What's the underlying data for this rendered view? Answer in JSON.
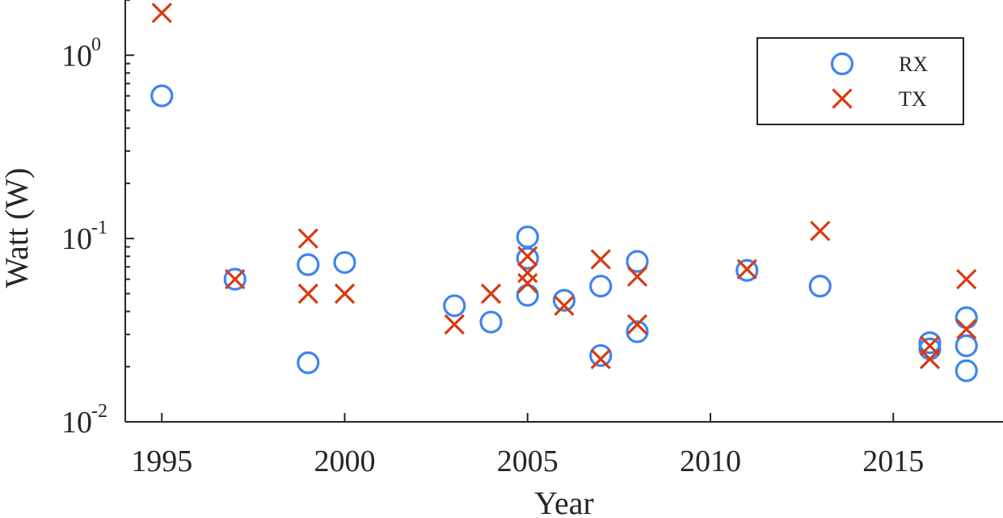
{
  "chart_data": {
    "type": "scatter",
    "title": "",
    "xlabel": "Year",
    "ylabel": "Watt (W)",
    "xlim": [
      1994,
      2018
    ],
    "ylim": [
      0.01,
      2
    ],
    "yscale": "log",
    "xticks": [
      1995,
      2000,
      2005,
      2010,
      2015
    ],
    "xtick_labels": [
      "1995",
      "2000",
      "2005",
      "2010",
      "2015"
    ],
    "yticks": [
      {
        "value": 1,
        "base": "10",
        "exp": "0"
      },
      {
        "value": 0.1,
        "base": "10",
        "exp": "-1"
      },
      {
        "value": 0.01,
        "base": "10",
        "exp": "-2"
      }
    ],
    "grid": false,
    "legend_position": "top-right",
    "series": [
      {
        "name": "RX",
        "marker": "circle",
        "color": "#3d85f0",
        "points": [
          [
            1995,
            0.6
          ],
          [
            1997,
            0.06
          ],
          [
            1999,
            0.072
          ],
          [
            1999,
            0.021
          ],
          [
            2000,
            0.074
          ],
          [
            2003,
            0.043
          ],
          [
            2004,
            0.035
          ],
          [
            2005,
            0.102
          ],
          [
            2005,
            0.078
          ],
          [
            2005,
            0.049
          ],
          [
            2006,
            0.046
          ],
          [
            2007,
            0.055
          ],
          [
            2007,
            0.023
          ],
          [
            2008,
            0.075
          ],
          [
            2008,
            0.031
          ],
          [
            2011,
            0.067
          ],
          [
            2013,
            0.055
          ],
          [
            2016,
            0.027
          ],
          [
            2016,
            0.025
          ],
          [
            2017,
            0.037
          ],
          [
            2017,
            0.026
          ],
          [
            2017,
            0.019
          ]
        ]
      },
      {
        "name": "TX",
        "marker": "x",
        "color": "#d93a12",
        "points": [
          [
            1995,
            1.7
          ],
          [
            1997,
            0.06
          ],
          [
            1999,
            0.1
          ],
          [
            1999,
            0.05
          ],
          [
            2000,
            0.05
          ],
          [
            2003,
            0.034
          ],
          [
            2004,
            0.05
          ],
          [
            2005,
            0.08
          ],
          [
            2005,
            0.065
          ],
          [
            2005,
            0.057
          ],
          [
            2006,
            0.043
          ],
          [
            2007,
            0.077
          ],
          [
            2007,
            0.022
          ],
          [
            2008,
            0.062
          ],
          [
            2008,
            0.034
          ],
          [
            2011,
            0.068
          ],
          [
            2013,
            0.11
          ],
          [
            2016,
            0.026
          ],
          [
            2016,
            0.022
          ],
          [
            2017,
            0.06
          ],
          [
            2017,
            0.032
          ]
        ]
      }
    ]
  }
}
